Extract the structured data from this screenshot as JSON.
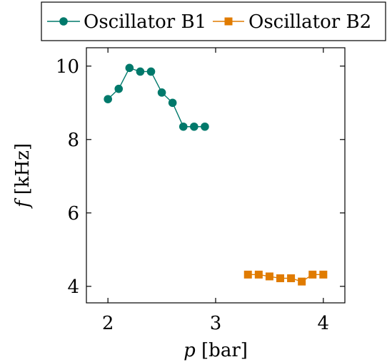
{
  "chart_data": {
    "type": "line",
    "xlabel": {
      "var": "p",
      "unit": " [bar]"
    },
    "ylabel": {
      "var": "f",
      "unit": " [kHz]"
    },
    "xlim": [
      1.8,
      4.2
    ],
    "ylim": [
      3.55,
      10.5
    ],
    "xticks": [
      2,
      3,
      4
    ],
    "yticks": [
      4,
      6,
      8,
      10
    ],
    "grid": false,
    "legend_position": "top",
    "series": [
      {
        "name": "Oscillator B1",
        "color": "#00796b",
        "marker": "circle",
        "connected": true,
        "x": [
          2.0,
          2.1,
          2.2,
          2.3,
          2.4,
          2.5,
          2.6,
          2.7,
          2.8,
          2.9
        ],
        "y": [
          9.1,
          9.38,
          9.95,
          9.85,
          9.85,
          9.28,
          9.0,
          8.35,
          8.35,
          8.35
        ]
      },
      {
        "name": "Oscillator B2",
        "color": "#e07b00",
        "marker": "square",
        "connected": true,
        "x": [
          3.3,
          3.4,
          3.5,
          3.6,
          3.7,
          3.8,
          3.9,
          4.0
        ],
        "y": [
          4.32,
          4.32,
          4.27,
          4.22,
          4.22,
          4.13,
          4.32,
          4.32
        ]
      }
    ]
  }
}
